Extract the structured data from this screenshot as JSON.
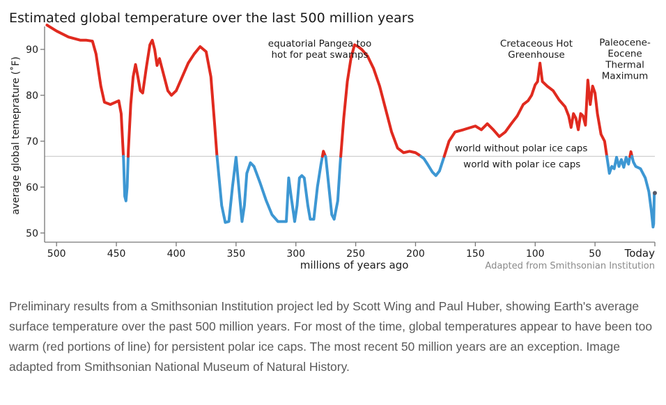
{
  "chart_data": {
    "type": "line",
    "title": "Estimated global temperature over the last 500 million years",
    "xlabel": "millions of years ago",
    "ylabel": "average global temeprature (˚F)",
    "xlim": [
      510,
      0
    ],
    "ylim": [
      48,
      95
    ],
    "x_ticks": [
      500,
      450,
      400,
      350,
      300,
      250,
      200,
      150,
      100,
      50
    ],
    "x_tick_labels": [
      "500",
      "450",
      "400",
      "350",
      "300",
      "250",
      "200",
      "150",
      "100",
      "50"
    ],
    "x_today_label": "Today",
    "y_ticks": [
      50,
      60,
      70,
      80,
      90
    ],
    "y_tick_labels": [
      "50",
      "60",
      "70",
      "80",
      "90"
    ],
    "threshold": {
      "value": 66.7,
      "label_above": "world without polar ice caps",
      "label_below": "world with polar ice caps"
    },
    "series": [
      {
        "color_above": "#e02a1f",
        "color_below": "#3d97d3",
        "points": [
          [
            508,
            95.3
          ],
          [
            500,
            94
          ],
          [
            490,
            92.7
          ],
          [
            480,
            92
          ],
          [
            475,
            92
          ],
          [
            470,
            91.8
          ],
          [
            467,
            89
          ],
          [
            463,
            82
          ],
          [
            460,
            78.5
          ],
          [
            455,
            78
          ],
          [
            448,
            78.8
          ],
          [
            446,
            76
          ],
          [
            444,
            66
          ],
          [
            443,
            58
          ],
          [
            442,
            57
          ],
          [
            441,
            60
          ],
          [
            440,
            68
          ],
          [
            438,
            78
          ],
          [
            436,
            84
          ],
          [
            434,
            86.7
          ],
          [
            432,
            84
          ],
          [
            430,
            81
          ],
          [
            428,
            80.5
          ],
          [
            425,
            86
          ],
          [
            422,
            91
          ],
          [
            420,
            92
          ],
          [
            418,
            90
          ],
          [
            416,
            86.5
          ],
          [
            414,
            88
          ],
          [
            412,
            86
          ],
          [
            410,
            84
          ],
          [
            407,
            81
          ],
          [
            404,
            80
          ],
          [
            400,
            81
          ],
          [
            395,
            84
          ],
          [
            390,
            87
          ],
          [
            385,
            89
          ],
          [
            380,
            90.6
          ],
          [
            375,
            89.5
          ],
          [
            371,
            84
          ],
          [
            368,
            74
          ],
          [
            366,
            67
          ],
          [
            362,
            56
          ],
          [
            359,
            52.3
          ],
          [
            356,
            52.5
          ],
          [
            353,
            60
          ],
          [
            350,
            66.5
          ],
          [
            347,
            58
          ],
          [
            345,
            52.5
          ],
          [
            343,
            56
          ],
          [
            341,
            63
          ],
          [
            338,
            65.3
          ],
          [
            335,
            64.5
          ],
          [
            330,
            61
          ],
          [
            325,
            57.2
          ],
          [
            320,
            54
          ],
          [
            315,
            52.5
          ],
          [
            310,
            52.5
          ],
          [
            308,
            52.5
          ],
          [
            306,
            62
          ],
          [
            304,
            58
          ],
          [
            301,
            52.5
          ],
          [
            299,
            56
          ],
          [
            297,
            62
          ],
          [
            295,
            62.5
          ],
          [
            293,
            62
          ],
          [
            290,
            56
          ],
          [
            288,
            53
          ],
          [
            285,
            53
          ],
          [
            282,
            60
          ],
          [
            279,
            65
          ],
          [
            277,
            67.8
          ],
          [
            275,
            66.5
          ],
          [
            272,
            59
          ],
          [
            270,
            54
          ],
          [
            268,
            53
          ],
          [
            265,
            57
          ],
          [
            263,
            65
          ],
          [
            260,
            75
          ],
          [
            257,
            83
          ],
          [
            254,
            88
          ],
          [
            251,
            91
          ],
          [
            248,
            90.6
          ],
          [
            245,
            90
          ],
          [
            240,
            88.5
          ],
          [
            235,
            85.8
          ],
          [
            230,
            82
          ],
          [
            225,
            77
          ],
          [
            220,
            72
          ],
          [
            215,
            68.5
          ],
          [
            210,
            67.5
          ],
          [
            205,
            67.8
          ],
          [
            200,
            67.5
          ],
          [
            197,
            67
          ],
          [
            193,
            66.2
          ],
          [
            190,
            65
          ],
          [
            186,
            63.3
          ],
          [
            183,
            62.5
          ],
          [
            180,
            63.5
          ],
          [
            176,
            66.7
          ],
          [
            172,
            70
          ],
          [
            167,
            72
          ],
          [
            160,
            72.5
          ],
          [
            150,
            73.3
          ],
          [
            145,
            72.5
          ],
          [
            140,
            73.8
          ],
          [
            135,
            72.5
          ],
          [
            130,
            71
          ],
          [
            125,
            72
          ],
          [
            120,
            73.8
          ],
          [
            115,
            75.5
          ],
          [
            110,
            78
          ],
          [
            106,
            78.8
          ],
          [
            103,
            80
          ],
          [
            100,
            82.3
          ],
          [
            98,
            83
          ],
          [
            96,
            87
          ],
          [
            94,
            83
          ],
          [
            90,
            82
          ],
          [
            85,
            81
          ],
          [
            80,
            79
          ],
          [
            75,
            77.5
          ],
          [
            72,
            75.5
          ],
          [
            70,
            73
          ],
          [
            68,
            76
          ],
          [
            66,
            75
          ],
          [
            64,
            72.5
          ],
          [
            62,
            76
          ],
          [
            60,
            75.5
          ],
          [
            58,
            73.5
          ],
          [
            56,
            83.3
          ],
          [
            54,
            78
          ],
          [
            52,
            82
          ],
          [
            50,
            80.5
          ],
          [
            48,
            76
          ],
          [
            45,
            71.5
          ],
          [
            42,
            70
          ],
          [
            40,
            66.5
          ],
          [
            38,
            63
          ],
          [
            36,
            64.5
          ],
          [
            34,
            64
          ],
          [
            32,
            66.5
          ],
          [
            30,
            64.5
          ],
          [
            28,
            66
          ],
          [
            26,
            64.3
          ],
          [
            24,
            66.5
          ],
          [
            22,
            65
          ],
          [
            20,
            67.7
          ],
          [
            18,
            65.5
          ],
          [
            16,
            64.5
          ],
          [
            12,
            64
          ],
          [
            8,
            62
          ],
          [
            5,
            59
          ],
          [
            3,
            55
          ],
          [
            1.5,
            51.3
          ],
          [
            1,
            52
          ],
          [
            0.5,
            58.5
          ],
          [
            0,
            58.7
          ]
        ]
      }
    ],
    "annotations": [
      {
        "lines": [
          "equatorial Pangea too",
          "hot for peat swamps"
        ],
        "x": 280,
        "y": 90.6
      },
      {
        "lines": [
          "Cretaceous Hot",
          "Greenhouse"
        ],
        "x": 99,
        "y": 90.6
      },
      {
        "lines": [
          "Paleocene-",
          "Eocene",
          "Thermal",
          "Maximum"
        ],
        "x": 25,
        "y": 90.8
      }
    ],
    "credit": "Adapted from Smithsonian Institution"
  },
  "caption": "Preliminary results from a Smithsonian Institution project led by Scott Wing and Paul Huber, showing Earth's average surface temperature over the past 500 million years.  For most of the time, global temperatures appear to have been too warm (red portions of line) for persistent polar ice caps. The most recent 50 million years are an exception. Image adapted from Smithsonian National Museum of Natural History."
}
